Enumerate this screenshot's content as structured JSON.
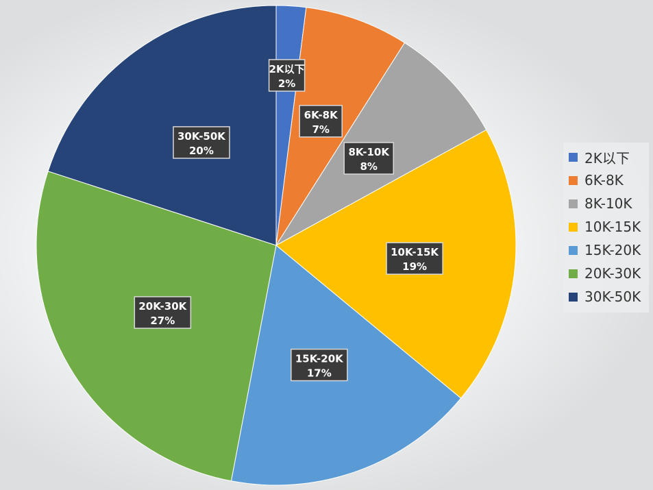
{
  "chart_data": {
    "type": "pie",
    "title": "",
    "start_angle_deg": 0,
    "direction": "clockwise",
    "legend_position": "right",
    "slices": [
      {
        "label": "2K以下",
        "value": 2,
        "value_label": "2%",
        "color": "#4472C4"
      },
      {
        "label": "6K-8K",
        "value": 7,
        "value_label": "7%",
        "color": "#ED7D31"
      },
      {
        "label": "8K-10K",
        "value": 8,
        "value_label": "8%",
        "color": "#A5A5A5"
      },
      {
        "label": "10K-15K",
        "value": 19,
        "value_label": "19%",
        "color": "#FFC000"
      },
      {
        "label": "15K-20K",
        "value": 17,
        "value_label": "17%",
        "color": "#5B9BD5"
      },
      {
        "label": "20K-30K",
        "value": 27,
        "value_label": "27%",
        "color": "#70AD47"
      },
      {
        "label": "30K-50K",
        "value": 20,
        "value_label": "20%",
        "color": "#264478"
      }
    ]
  },
  "legend": {
    "items": [
      {
        "label": "2K以下",
        "color": "#4472C4"
      },
      {
        "label": "6K-8K",
        "color": "#ED7D31"
      },
      {
        "label": "8K-10K",
        "color": "#A5A5A5"
      },
      {
        "label": "10K-15K",
        "color": "#FFC000"
      },
      {
        "label": "15K-20K",
        "color": "#5B9BD5"
      },
      {
        "label": "20K-30K",
        "color": "#70AD47"
      },
      {
        "label": "30K-50K",
        "color": "#264478"
      }
    ]
  }
}
